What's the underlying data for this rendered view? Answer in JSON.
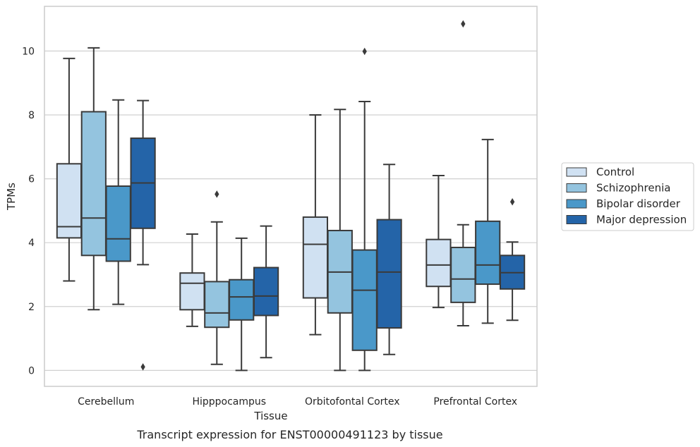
{
  "chart_data": {
    "type": "box",
    "caption": "Transcript expression for ENST00000491123 by tissue",
    "xlabel": "Tissue",
    "ylabel": "TPMs",
    "ylim": [
      -0.5,
      11.4
    ],
    "yticks": [
      0,
      2,
      4,
      6,
      8,
      10
    ],
    "grid": "horizontal",
    "legend_position": "right",
    "categories": [
      "Cerebellum",
      "Hipppocampus",
      "Orbitofontal Cortex",
      "Prefrontal Cortex"
    ],
    "series": [
      {
        "name": "Control",
        "color": "#d0e1f2",
        "boxes": [
          {
            "whislo": 2.8,
            "q1": 4.15,
            "med": 4.5,
            "q3": 6.47,
            "whishi": 9.77,
            "fliers": []
          },
          {
            "whislo": 1.38,
            "q1": 1.9,
            "med": 2.73,
            "q3": 3.05,
            "whishi": 4.27,
            "fliers": []
          },
          {
            "whislo": 1.12,
            "q1": 2.27,
            "med": 3.95,
            "q3": 4.8,
            "whishi": 8.0,
            "fliers": []
          },
          {
            "whislo": 1.97,
            "q1": 2.63,
            "med": 3.3,
            "q3": 4.1,
            "whishi": 6.1,
            "fliers": []
          }
        ]
      },
      {
        "name": "Schizophrenia",
        "color": "#94c4df",
        "boxes": [
          {
            "whislo": 1.9,
            "q1": 3.6,
            "med": 4.77,
            "q3": 8.1,
            "whishi": 10.1,
            "fliers": []
          },
          {
            "whislo": 0.19,
            "q1": 1.35,
            "med": 1.8,
            "q3": 2.78,
            "whishi": 4.65,
            "fliers": [
              5.52
            ]
          },
          {
            "whislo": 0.0,
            "q1": 1.8,
            "med": 3.08,
            "q3": 4.38,
            "whishi": 8.17,
            "fliers": []
          },
          {
            "whislo": 1.4,
            "q1": 2.13,
            "med": 2.86,
            "q3": 3.85,
            "whishi": 4.56,
            "fliers": [
              10.85
            ]
          }
        ]
      },
      {
        "name": "Bipolar disorder",
        "color": "#4a98c9",
        "boxes": [
          {
            "whislo": 2.07,
            "q1": 3.42,
            "med": 4.12,
            "q3": 5.77,
            "whishi": 8.47,
            "fliers": []
          },
          {
            "whislo": 0.0,
            "q1": 1.58,
            "med": 2.3,
            "q3": 2.84,
            "whishi": 4.14,
            "fliers": []
          },
          {
            "whislo": 0.0,
            "q1": 0.63,
            "med": 2.51,
            "q3": 3.77,
            "whishi": 8.42,
            "fliers": [
              9.99
            ]
          },
          {
            "whislo": 1.48,
            "q1": 2.7,
            "med": 3.3,
            "q3": 4.67,
            "whishi": 7.23,
            "fliers": []
          }
        ]
      },
      {
        "name": "Major depression",
        "color": "#2464a8",
        "boxes": [
          {
            "whislo": 3.31,
            "q1": 4.45,
            "med": 5.87,
            "q3": 7.27,
            "whishi": 8.45,
            "fliers": [
              0.11
            ]
          },
          {
            "whislo": 0.4,
            "q1": 1.72,
            "med": 2.33,
            "q3": 3.22,
            "whishi": 4.52,
            "fliers": []
          },
          {
            "whislo": 0.5,
            "q1": 1.33,
            "med": 3.08,
            "q3": 4.72,
            "whishi": 6.45,
            "fliers": []
          },
          {
            "whislo": 1.57,
            "q1": 2.55,
            "med": 3.06,
            "q3": 3.6,
            "whishi": 4.02,
            "fliers": [
              5.28
            ]
          }
        ]
      }
    ]
  }
}
